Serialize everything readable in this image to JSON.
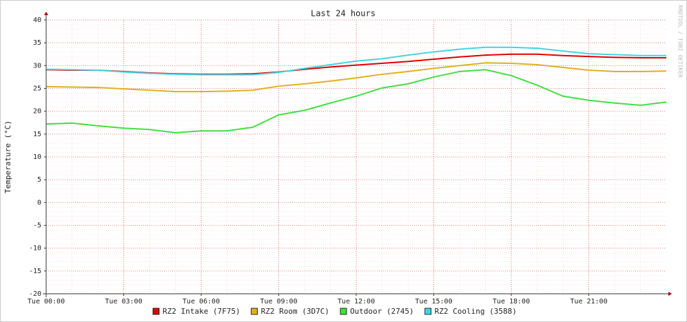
{
  "chart_data": {
    "type": "line",
    "title": "Last 24 hours",
    "y_label": "Temperature (°C)",
    "watermark": "RRDTOOL / TOBI OETIKER",
    "x": [
      0,
      1,
      2,
      3,
      4,
      5,
      6,
      7,
      8,
      9,
      10,
      11,
      12,
      13,
      14,
      15,
      16,
      17,
      18,
      19,
      20,
      21,
      22,
      23,
      24
    ],
    "xlim": [
      0,
      24
    ],
    "xticks": [
      {
        "value": 0,
        "label": "Tue 00:00"
      },
      {
        "value": 3,
        "label": "Tue 03:00"
      },
      {
        "value": 6,
        "label": "Tue 06:00"
      },
      {
        "value": 9,
        "label": "Tue 09:00"
      },
      {
        "value": 12,
        "label": "Tue 12:00"
      },
      {
        "value": 15,
        "label": "Tue 15:00"
      },
      {
        "value": 18,
        "label": "Tue 18:00"
      },
      {
        "value": 21,
        "label": "Tue 21:00"
      }
    ],
    "ylim": [
      -20,
      40
    ],
    "yticks": [
      -20,
      -15,
      -10,
      -5,
      0,
      5,
      10,
      15,
      20,
      25,
      30,
      35,
      40
    ],
    "grid": true,
    "series": [
      {
        "name": "RZ2 Intake (7F75)",
        "color": "#e00000",
        "values": [
          29.1,
          29.0,
          29.0,
          28.7,
          28.4,
          28.2,
          28.1,
          28.1,
          28.2,
          28.6,
          29.2,
          29.7,
          30.1,
          30.5,
          30.9,
          31.4,
          31.9,
          32.3,
          32.5,
          32.5,
          32.2,
          32.0,
          31.8,
          31.7,
          31.7
        ]
      },
      {
        "name": "RZ2 Room (3D7C)",
        "color": "#e0b020",
        "values": [
          25.4,
          25.3,
          25.2,
          24.9,
          24.6,
          24.3,
          24.3,
          24.4,
          24.6,
          25.5,
          26.0,
          26.6,
          27.3,
          28.1,
          28.7,
          29.4,
          30.0,
          30.6,
          30.5,
          30.2,
          29.6,
          29.0,
          28.7,
          28.7,
          28.8
        ]
      },
      {
        "name": "Outdoor (2745)",
        "color": "#44dd44",
        "values": [
          17.2,
          17.4,
          16.8,
          16.3,
          16.0,
          15.3,
          15.7,
          15.7,
          16.5,
          19.2,
          20.2,
          21.8,
          23.3,
          25.1,
          26.0,
          27.5,
          28.7,
          29.1,
          27.8,
          25.7,
          23.3,
          22.4,
          21.8,
          21.3,
          22.0
        ]
      },
      {
        "name": "RZ2 Cooling (3588)",
        "color": "#44d4e0",
        "values": [
          29.2,
          29.1,
          29.0,
          28.6,
          28.3,
          28.1,
          28.0,
          28.0,
          28.0,
          28.5,
          29.4,
          30.2,
          31.0,
          31.5,
          32.3,
          33.0,
          33.6,
          34.0,
          34.0,
          33.8,
          33.2,
          32.6,
          32.4,
          32.2,
          32.2
        ]
      }
    ]
  }
}
